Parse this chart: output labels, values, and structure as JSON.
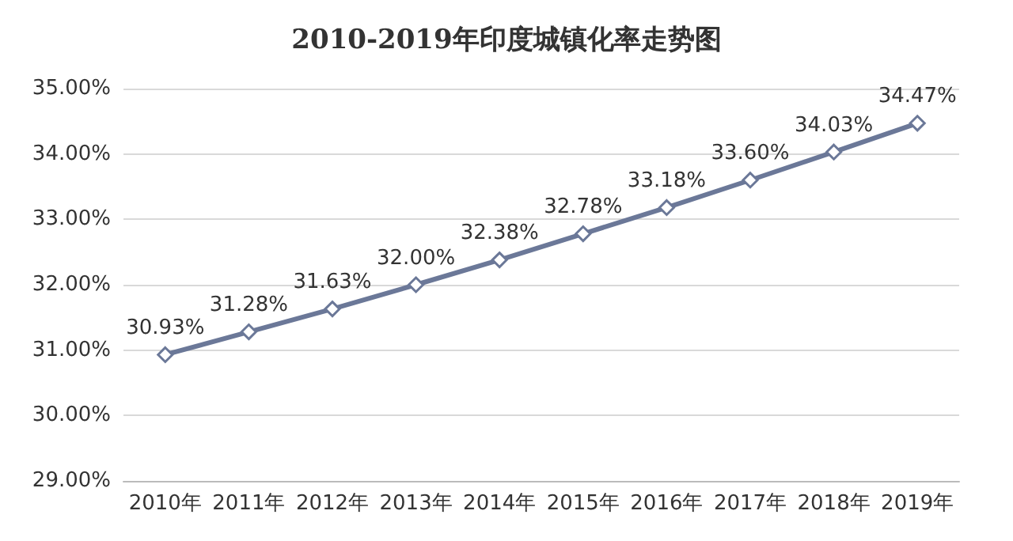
{
  "chart_data": {
    "type": "line",
    "title": "2010-2019年印度城镇化率走势图",
    "categories": [
      "2010年",
      "2011年",
      "2012年",
      "2013年",
      "2014年",
      "2015年",
      "2016年",
      "2017年",
      "2018年",
      "2019年"
    ],
    "series": [
      {
        "color": "#6b7898",
        "values": [
          30.93,
          31.28,
          31.63,
          32.0,
          32.38,
          32.78,
          33.18,
          33.6,
          34.03,
          34.47
        ],
        "value_labels": [
          "30.93%",
          "31.28%",
          "31.63%",
          "32.00%",
          "32.38%",
          "32.78%",
          "33.18%",
          "33.60%",
          "34.03%",
          "34.47%"
        ]
      }
    ],
    "ylim": [
      29,
      35
    ],
    "yticks": [
      {
        "value": 29,
        "label": "29.00%"
      },
      {
        "value": 30,
        "label": "30.00%"
      },
      {
        "value": 31,
        "label": "31.00%"
      },
      {
        "value": 32,
        "label": "32.00%"
      },
      {
        "value": 33,
        "label": "33.00%"
      },
      {
        "value": 34,
        "label": "34.00%"
      },
      {
        "value": 35,
        "label": "35.00%"
      }
    ],
    "grid": "y",
    "marker": "diamond",
    "line_style": "solid"
  }
}
